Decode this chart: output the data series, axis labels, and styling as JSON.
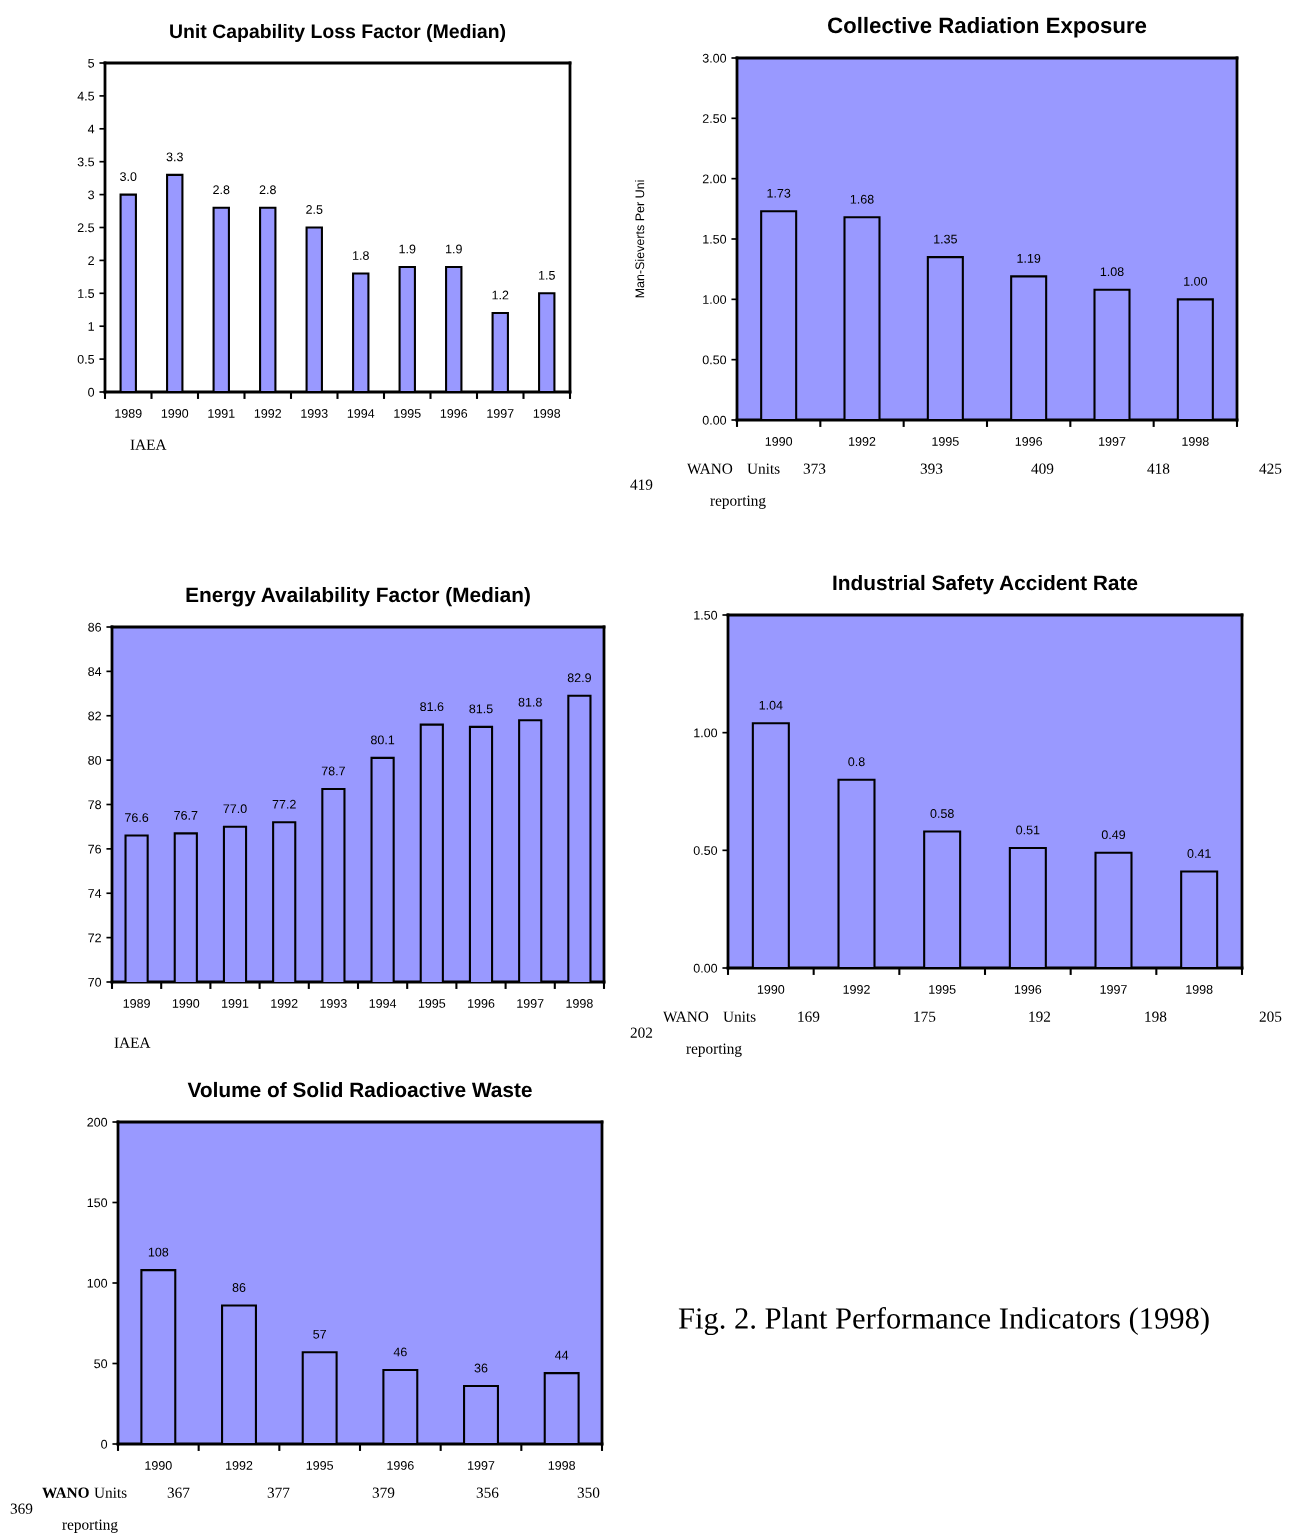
{
  "chart_data": [
    {
      "type": "bar",
      "title": "Unit Capability Loss Factor (Median)",
      "categories": [
        "1989",
        "1990",
        "1991",
        "1992",
        "1993",
        "1994",
        "1995",
        "1996",
        "1997",
        "1998"
      ],
      "values": [
        3.0,
        3.3,
        2.8,
        2.8,
        2.5,
        1.8,
        1.9,
        1.9,
        1.2,
        1.5
      ],
      "value_labels": [
        "3.0",
        "3.3",
        "2.8",
        "2.8",
        "2.5",
        "1.8",
        "1.9",
        "1.9",
        "1.2",
        "1.5"
      ],
      "color": "#9999ff",
      "ylim": [
        0,
        5
      ],
      "yticks": [
        0,
        0.5,
        1,
        1.5,
        2,
        2.5,
        3,
        3.5,
        4,
        4.5,
        5
      ],
      "annotations": [
        "IAEA"
      ]
    },
    {
      "type": "bar",
      "title": "Collective Radiation Exposure",
      "ylabel": "Man-Sieverts Per Uni",
      "categories": [
        "1990",
        "1992",
        "1995",
        "1996",
        "1997",
        "1998"
      ],
      "values": [
        1.73,
        1.68,
        1.35,
        1.19,
        1.08,
        1.0
      ],
      "value_labels": [
        "1.73",
        "1.68",
        "1.35",
        "1.19",
        "1.08",
        "1.00"
      ],
      "color": "#9999ff",
      "ylim": [
        0,
        3
      ],
      "yticks": [
        {
          "value": 0,
          "label": "0.00"
        },
        {
          "value": 0.5,
          "label": "0.50"
        },
        {
          "value": 1,
          "label": "1.00"
        },
        {
          "value": 1.5,
          "label": "1.50"
        },
        {
          "value": 2,
          "label": "2.00"
        },
        {
          "value": 2.5,
          "label": "2.50"
        },
        {
          "value": 3,
          "label": "3.00"
        }
      ],
      "annotations": [
        "WANO",
        "Units",
        "373",
        "393",
        "409",
        "418",
        "425",
        "419",
        "reporting"
      ]
    },
    {
      "type": "bar",
      "title": "Energy Availability Factor (Median)",
      "categories": [
        "1989",
        "1990",
        "1991",
        "1992",
        "1993",
        "1994",
        "1995",
        "1996",
        "1997",
        "1998"
      ],
      "values": [
        76.6,
        76.7,
        77.0,
        77.2,
        78.7,
        80.1,
        81.6,
        81.5,
        81.8,
        82.9
      ],
      "value_labels": [
        "76.6",
        "76.7",
        "77.0",
        "77.2",
        "78.7",
        "80.1",
        "81.6",
        "81.5",
        "81.8",
        "82.9"
      ],
      "color": "#9999ff",
      "ylim": [
        70,
        86
      ],
      "yticks": [
        70,
        72,
        74,
        76,
        78,
        80,
        82,
        84,
        86
      ],
      "annotations": [
        "IAEA"
      ]
    },
    {
      "type": "bar",
      "title": "Industrial Safety Accident Rate",
      "categories": [
        "1990",
        "1992",
        "1995",
        "1996",
        "1997",
        "1998"
      ],
      "values": [
        1.04,
        0.8,
        0.58,
        0.51,
        0.49,
        0.41
      ],
      "value_labels": [
        "1.04",
        "0.8",
        "0.58",
        "0.51",
        "0.49",
        "0.41"
      ],
      "color": "#9999ff",
      "ylim": [
        0,
        1.5
      ],
      "yticks": [
        {
          "value": 0,
          "label": "0.00"
        },
        {
          "value": 0.5,
          "label": "0.50"
        },
        {
          "value": 1,
          "label": "1.00"
        },
        {
          "value": 1.5,
          "label": "1.50"
        }
      ],
      "annotations": [
        "WANO",
        "Units",
        "169",
        "175",
        "192",
        "198",
        "205",
        "202",
        "reporting"
      ]
    },
    {
      "type": "bar",
      "title": "Volume of Solid Radioactive Waste",
      "categories": [
        "1990",
        "1992",
        "1995",
        "1996",
        "1997",
        "1998"
      ],
      "values": [
        108,
        86,
        57,
        46,
        36,
        44
      ],
      "value_labels": [
        "108",
        "86",
        "57",
        "46",
        "36",
        "44"
      ],
      "color": "#9999ff",
      "ylim": [
        0,
        200
      ],
      "yticks": [
        0,
        50,
        100,
        150,
        200
      ],
      "annotations": [
        "WANO",
        "Units",
        "367",
        "377",
        "379",
        "356",
        "350",
        "369",
        "reporting",
        "Fig. 2. Plant Performance Indicators (1998)"
      ]
    }
  ]
}
